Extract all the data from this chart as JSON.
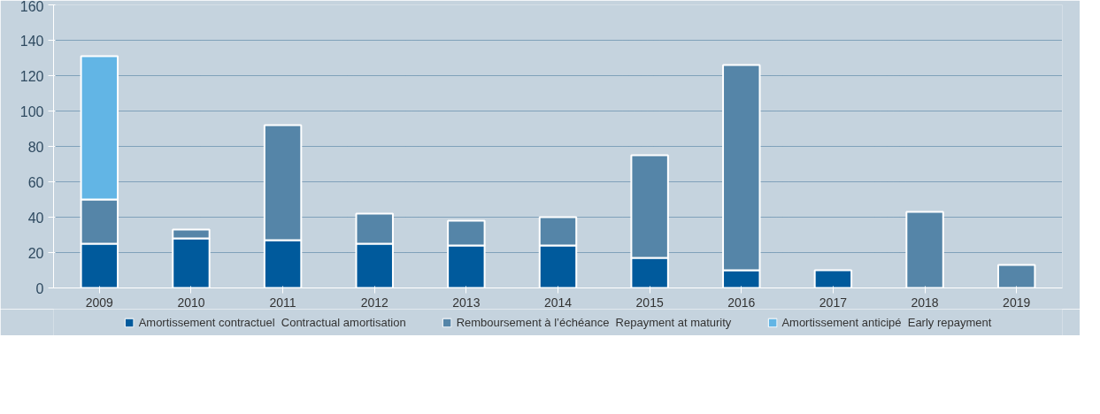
{
  "chart_data": {
    "type": "bar",
    "stacked": true,
    "categories": [
      "2009",
      "2010",
      "2011",
      "2012",
      "2013",
      "2014",
      "2015",
      "2016",
      "2017",
      "2018",
      "2019"
    ],
    "series": [
      {
        "name": "Amortissement contractuel  Contractual amortisation",
        "color": "#005a9c",
        "values": [
          25,
          28,
          27,
          25,
          24,
          24,
          17,
          10,
          10,
          null,
          null
        ]
      },
      {
        "name": "Remboursement à l’échéance  Repayment at maturity",
        "color": "#5585a8",
        "values": [
          25,
          5,
          65,
          17,
          14,
          16,
          58,
          116,
          null,
          43,
          13
        ]
      },
      {
        "name": "Amortissement anticipé  Early repayment",
        "color": "#62b5e5",
        "values": [
          81,
          null,
          null,
          null,
          null,
          null,
          null,
          null,
          null,
          null,
          null
        ]
      }
    ],
    "ylim": [
      0,
      160
    ],
    "yticks": [
      0,
      20,
      40,
      60,
      80,
      100,
      120,
      140,
      160
    ],
    "grid": "y",
    "legend": "bottom"
  }
}
